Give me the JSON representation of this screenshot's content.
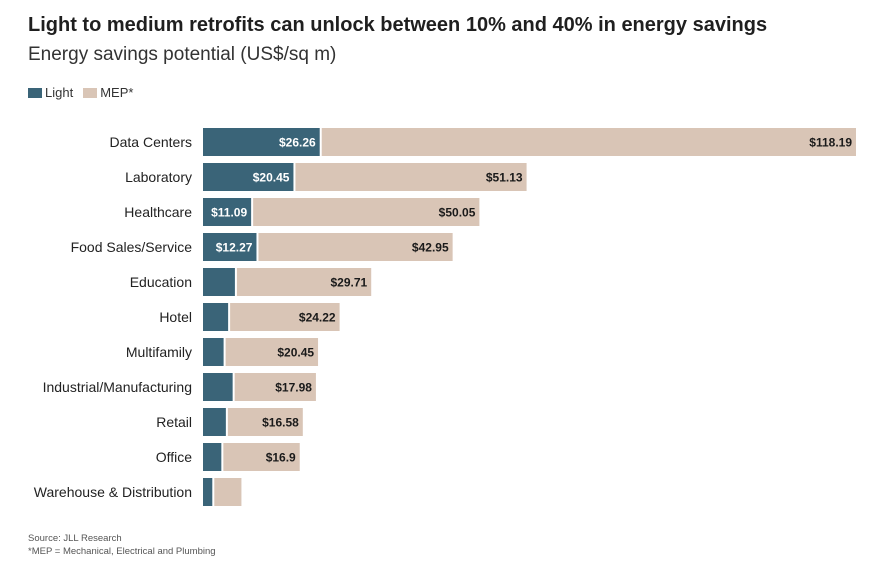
{
  "chart_data": {
    "type": "bar",
    "orientation": "horizontal",
    "stacked": true,
    "title": "Light to medium retrofits can unlock between 10% and 40% in energy savings",
    "subtitle": "Energy savings potential (US$/sq m)",
    "categories": [
      "Data Centers",
      "Laboratory",
      "Healthcare",
      "Food Sales/Service",
      "Education",
      "Hotel",
      "Multifamily",
      "Industrial/Manufacturing",
      "Retail",
      "Office",
      "Warehouse & Distribution"
    ],
    "series": [
      {
        "name": "Light",
        "color": "#3a6478",
        "values": [
          26.26,
          20.45,
          11.09,
          12.27,
          7.5,
          6.0,
          5.0,
          7.0,
          5.5,
          4.5,
          2.5
        ],
        "labels": [
          "$26.26",
          "$20.45",
          "$11.09",
          "$12.27",
          "",
          "",
          "",
          "",
          "",
          "",
          ""
        ]
      },
      {
        "name": "MEP*",
        "color": "#d9c5b6",
        "values": [
          118.19,
          51.13,
          50.05,
          42.95,
          29.71,
          24.22,
          20.45,
          17.98,
          16.58,
          16.9,
          6.0
        ],
        "labels": [
          "$118.19",
          "$51.13",
          "$50.05",
          "$42.95",
          "$29.71",
          "$24.22",
          "$20.45",
          "$17.98",
          "$16.58",
          "$16.9",
          ""
        ]
      }
    ],
    "grid": false,
    "legend_placement": "top-left"
  },
  "legend": {
    "light_label": "Light",
    "mep_label": "MEP*"
  },
  "footnotes": {
    "source": "Source: JLL Research",
    "mep_note": "*MEP = Mechanical, Electrical and Plumbing"
  }
}
